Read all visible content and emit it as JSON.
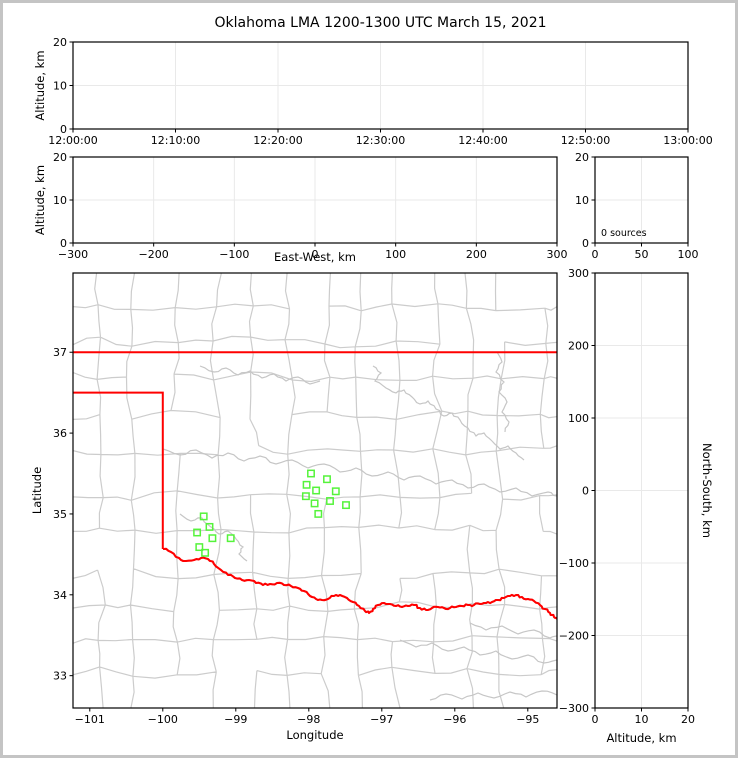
{
  "title": "Oklahoma LMA 1200-1300 UTC March 15, 2021",
  "colors": {
    "figure_border": "#c4c4c4",
    "background": "#ffffff",
    "axis": "#000000",
    "gridlines": "#e9e9e9",
    "county_lines": "#cccccc",
    "rivers": "#c6c6c6",
    "state_border": "#ff0000",
    "stations": "#55f33b"
  },
  "panels": {
    "time_height": {
      "ylabel": "Altitude, km",
      "yticks": [
        "0",
        "10",
        "20"
      ],
      "xticks": [
        "12:00:00",
        "12:10:00",
        "12:20:00",
        "12:30:00",
        "12:40:00",
        "12:50:00",
        "13:00:00"
      ]
    },
    "ew_height": {
      "ylabel": "Altitude, km",
      "xlabel": "East-West, km",
      "yticks": [
        "0",
        "10",
        "20"
      ],
      "xticks": [
        "−300",
        "−200",
        "−100",
        "0",
        "100",
        "200",
        "300"
      ]
    },
    "sources_hist": {
      "yticks": [
        "0",
        "10",
        "20"
      ],
      "xticks": [
        "0",
        "50",
        "100"
      ],
      "annotation": "0 sources"
    },
    "map": {
      "ylabel": "Latitude",
      "xlabel": "Longitude",
      "yticks": [
        "33",
        "34",
        "35",
        "36",
        "37"
      ],
      "xticks": [
        "−101",
        "−100",
        "−99",
        "−98",
        "−97",
        "−96",
        "−95"
      ]
    },
    "ns_height": {
      "ylabel": "North-South, km",
      "xlabel": "Altitude, km",
      "xticks": [
        "0",
        "10",
        "20"
      ],
      "yticks": [
        "−300",
        "−200",
        "−100",
        "0",
        "100",
        "200",
        "300"
      ]
    }
  },
  "chart_data": [
    {
      "type": "scatter",
      "name": "altitude_vs_time",
      "ylabel": "Altitude, km",
      "xlim": [
        "12:00:00",
        "13:00:00"
      ],
      "ylim": [
        0,
        20
      ],
      "grid": true,
      "points": []
    },
    {
      "type": "scatter",
      "name": "altitude_vs_east_west",
      "xlabel": "East-West, km",
      "ylabel": "Altitude, km",
      "xlim": [
        -300,
        300
      ],
      "ylim": [
        0,
        20
      ],
      "grid": true,
      "points": []
    },
    {
      "type": "scatter",
      "name": "source_count_panel",
      "xlim": [
        0,
        100
      ],
      "ylim": [
        0,
        20
      ],
      "grid": true,
      "annotation": "0 sources",
      "points": []
    },
    {
      "type": "scatter",
      "name": "station_map",
      "xlabel": "Longitude",
      "ylabel": "Latitude",
      "xlim": [
        -101.23,
        -94.6
      ],
      "ylim": [
        32.6,
        37.98
      ],
      "grid": false,
      "state_outline": "Oklahoma",
      "stations_lon_lat": [
        [
          -99.44,
          34.97
        ],
        [
          -99.36,
          34.84
        ],
        [
          -99.53,
          34.77
        ],
        [
          -99.32,
          34.7
        ],
        [
          -99.07,
          34.7
        ],
        [
          -99.5,
          34.59
        ],
        [
          -99.42,
          34.52
        ],
        [
          -97.97,
          35.5
        ],
        [
          -97.75,
          35.43
        ],
        [
          -98.03,
          35.36
        ],
        [
          -97.9,
          35.29
        ],
        [
          -98.04,
          35.22
        ],
        [
          -97.63,
          35.28
        ],
        [
          -97.92,
          35.13
        ],
        [
          -97.71,
          35.16
        ],
        [
          -97.49,
          35.11
        ],
        [
          -97.87,
          35.0
        ]
      ],
      "points": []
    },
    {
      "type": "scatter",
      "name": "altitude_vs_north_south",
      "xlabel": "Altitude, km",
      "ylabel": "North-South, km",
      "xlim": [
        0,
        20
      ],
      "ylim": [
        -300,
        300
      ],
      "grid": true,
      "points": []
    }
  ]
}
